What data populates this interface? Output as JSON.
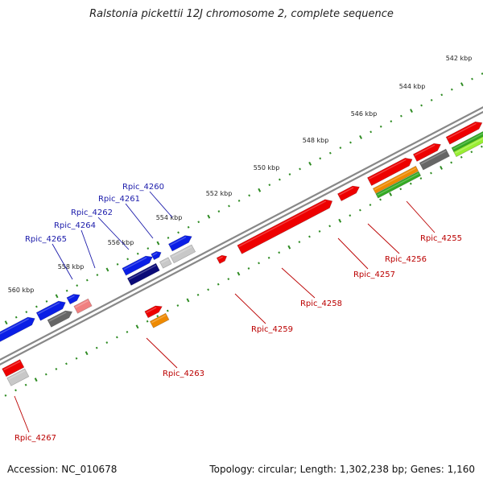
{
  "title": "Ralstonia pickettii 12J chromosome 2, complete sequence",
  "footer": {
    "accession": "Accession: NC_010678",
    "summary": "Topology: circular; Length: 1,302,238 bp; Genes: 1,160"
  },
  "scale_labels": [
    "542 kbp",
    "544 kbp",
    "546 kbp",
    "548 kbp",
    "550 kbp",
    "552 kbp",
    "554 kbp",
    "556 kbp",
    "558 kbp",
    "560 kbp"
  ],
  "colors": {
    "backbone": "#888888",
    "tick": "#2e8b22",
    "red": "#ee0000",
    "blue": "#0a1ee6",
    "navy": "#0a0a78",
    "grey": "#666666",
    "lightgrey": "#c8c8c8",
    "pink": "#f08080",
    "orange": "#ef8a00",
    "green": "#33aa22",
    "lime": "#99ee33",
    "label_blue": "#1a1aaa",
    "label_red": "#bb0000"
  },
  "gene_labels": [
    {
      "text": "Rpic_4260",
      "side": "upper"
    },
    {
      "text": "Rpic_4261",
      "side": "upper"
    },
    {
      "text": "Rpic_4262",
      "side": "upper"
    },
    {
      "text": "Rpic_4264",
      "side": "upper"
    },
    {
      "text": "Rpic_4265",
      "side": "upper"
    },
    {
      "text": "Rpic_4255",
      "side": "lower"
    },
    {
      "text": "Rpic_4256",
      "side": "lower"
    },
    {
      "text": "Rpic_4257",
      "side": "lower"
    },
    {
      "text": "Rpic_4258",
      "side": "lower"
    },
    {
      "text": "Rpic_4259",
      "side": "lower"
    },
    {
      "text": "Rpic_4263",
      "side": "lower"
    },
    {
      "text": "Rpic_4267",
      "side": "lower"
    }
  ]
}
